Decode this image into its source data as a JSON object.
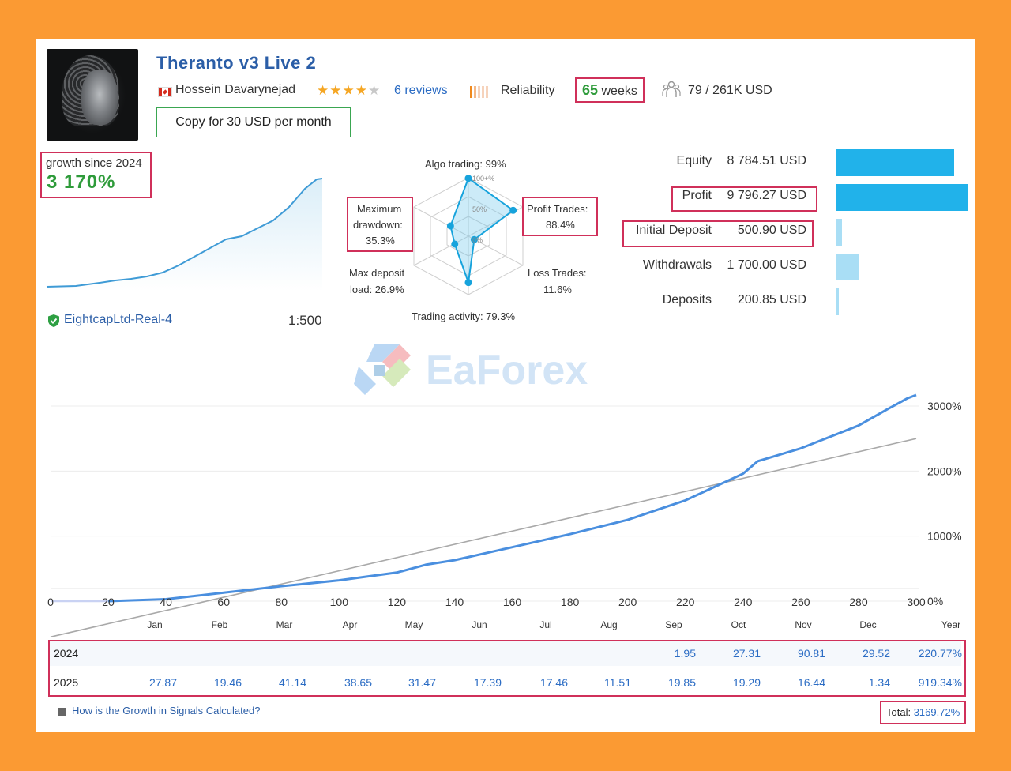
{
  "header": {
    "title": "Theranto v3 Live 2",
    "author": "Hossein Davarynejad",
    "rating_stars": 4,
    "reviews": "6 reviews",
    "reliability_label": "Reliability",
    "weeks_value": "65",
    "weeks_label": "weeks",
    "subscribers": "79 / 261K USD",
    "copy_button": "Copy for 30 USD per month"
  },
  "summary": {
    "growth_label": "growth since 2024",
    "growth_value": "3 170%",
    "broker": "EightcapLtd-Real-4",
    "leverage": "1:500"
  },
  "radar": {
    "algo_trading": "Algo trading: 99%",
    "profit_trades_label": "Profit Trades:",
    "profit_trades_value": "88.4%",
    "loss_trades_label": "Loss Trades:",
    "loss_trades_value": "11.6%",
    "trading_activity": "Trading activity: 79.3%",
    "max_deposit_label": "Max deposit",
    "max_deposit_value": "load: 26.9%",
    "max_drawdown_label1": "Maximum",
    "max_drawdown_label2": "drawdown:",
    "max_drawdown_value": "35.3%",
    "scale_100": "100+%",
    "scale_50": "50%",
    "scale_0": "0%",
    "values": {
      "algo": 99,
      "profit": 88.4,
      "loss": 11.6,
      "activity": 79.3,
      "deposit_load": 26.9,
      "drawdown": 35.3
    }
  },
  "balances": [
    {
      "label": "Equity",
      "value": "8 784.51 USD",
      "fraction": 0.89,
      "color": "#21b2ea"
    },
    {
      "label": "Profit",
      "value": "9 796.27 USD",
      "fraction": 1.0,
      "color": "#21b2ea"
    },
    {
      "label": "Initial Deposit",
      "value": "500.90 USD",
      "fraction": 0.05,
      "color": "#a9def5"
    },
    {
      "label": "Withdrawals",
      "value": "1 700.00 USD",
      "fraction": 0.17,
      "color": "#a9def5"
    },
    {
      "label": "Deposits",
      "value": "200.85 USD",
      "fraction": 0.02,
      "color": "#a9def5"
    }
  ],
  "watermark": "EaForex",
  "chart_data": {
    "type": "line",
    "x_ticks": [
      "0",
      "20",
      "40",
      "60",
      "80",
      "100",
      "120",
      "140",
      "160",
      "180",
      "200",
      "220",
      "240",
      "260",
      "280",
      "300"
    ],
    "y_ticks": [
      "3000%",
      "2000%",
      "1000%",
      "0%"
    ],
    "xlim": [
      0,
      300
    ],
    "ylim": [
      -900,
      3200
    ],
    "series": [
      {
        "points": [
          [
            0,
            0
          ],
          [
            20,
            0
          ],
          [
            40,
            30
          ],
          [
            60,
            130
          ],
          [
            80,
            230
          ],
          [
            100,
            320
          ],
          [
            120,
            440
          ],
          [
            130,
            560
          ],
          [
            140,
            630
          ],
          [
            160,
            830
          ],
          [
            180,
            1030
          ],
          [
            200,
            1250
          ],
          [
            210,
            1400
          ],
          [
            220,
            1550
          ],
          [
            240,
            1960
          ],
          [
            245,
            2150
          ],
          [
            260,
            2350
          ],
          [
            280,
            2700
          ],
          [
            290,
            2950
          ],
          [
            297,
            3120
          ],
          [
            300,
            3170
          ]
        ]
      },
      {
        "points": [
          [
            0,
            -550
          ],
          [
            300,
            2500
          ]
        ]
      }
    ]
  },
  "months": [
    "Jan",
    "Feb",
    "Mar",
    "Apr",
    "May",
    "Jun",
    "Jul",
    "Aug",
    "Sep",
    "Oct",
    "Nov",
    "Dec",
    "Year"
  ],
  "yearly": [
    {
      "year": "2024",
      "values": [
        "",
        "",
        "",
        "",
        "",
        "",
        "",
        "",
        "1.95",
        "27.31",
        "90.81",
        "29.52",
        "220.77%"
      ]
    },
    {
      "year": "2025",
      "values": [
        "27.87",
        "19.46",
        "41.14",
        "38.65",
        "31.47",
        "17.39",
        "17.46",
        "11.51",
        "19.85",
        "19.29",
        "16.44",
        "1.34",
        "919.34%"
      ]
    }
  ],
  "footer": {
    "help_link": "How is the Growth in Signals Calculated?",
    "total_label": "Total:",
    "total_value": "3169.72%"
  }
}
